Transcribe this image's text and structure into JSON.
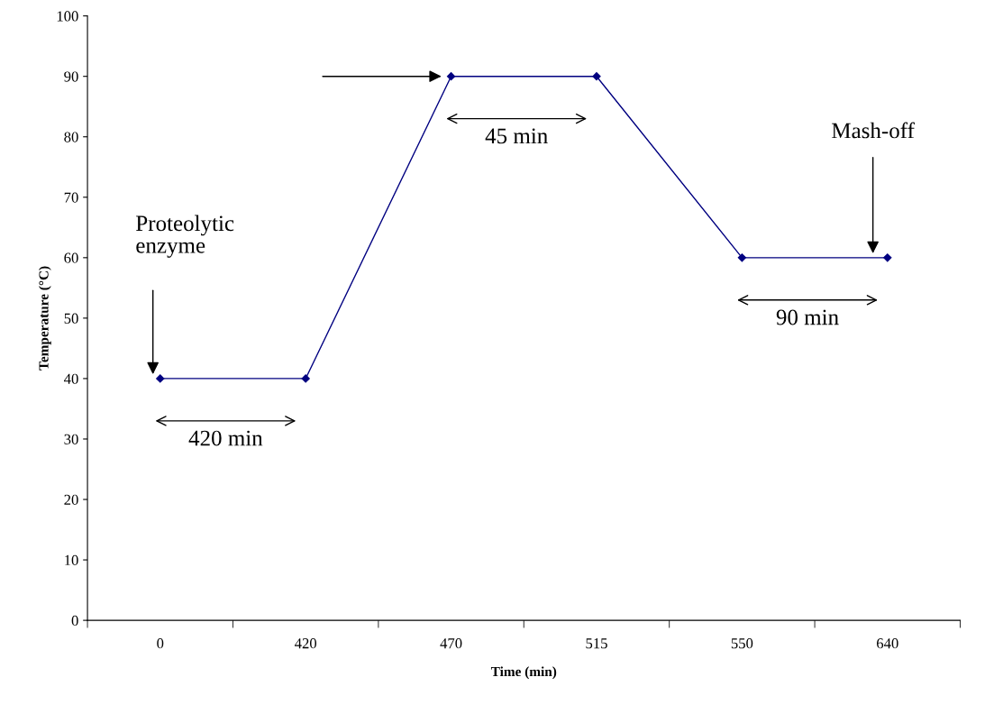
{
  "chart_data": {
    "type": "line",
    "xlabel": "Time (min)",
    "ylabel": "Temperature (°C)",
    "categories": [
      "0",
      "420",
      "470",
      "515",
      "550",
      "640"
    ],
    "series": [
      {
        "color": "#000080",
        "values": [
          40,
          40,
          90,
          90,
          60,
          60
        ]
      }
    ],
    "ylim": [
      0,
      100
    ],
    "yticks": [
      0,
      10,
      20,
      30,
      40,
      50,
      60,
      70,
      80,
      90,
      100
    ],
    "marker": "diamond",
    "line_style": "solid",
    "grid": false,
    "legend": false,
    "annotations": [
      "Proteolytic\nenzyme",
      "420 min",
      "45 min",
      "Mash-off",
      "90 min"
    ]
  }
}
